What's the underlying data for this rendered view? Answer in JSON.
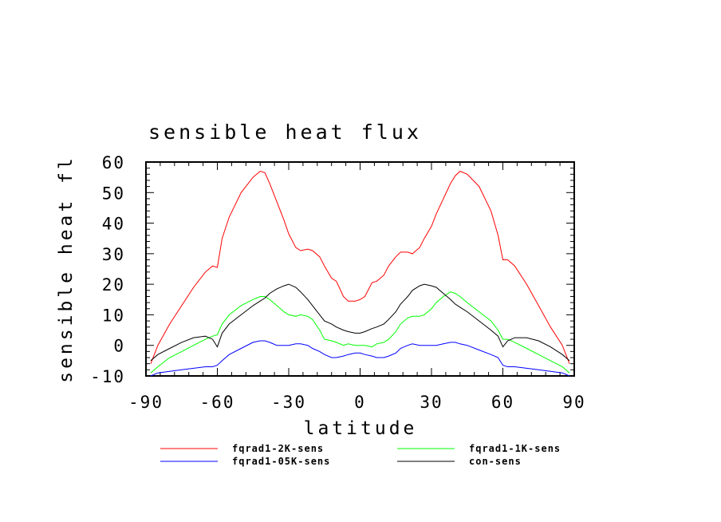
{
  "chart_data": {
    "type": "line",
    "title": "sensible heat flux",
    "xlabel": "latitude",
    "ylabel": "sensible heat fl",
    "xlim": [
      -90,
      90
    ],
    "ylim": [
      -10,
      60
    ],
    "xticks": [
      -90,
      -60,
      -30,
      0,
      30,
      60,
      90
    ],
    "yticks": [
      -10,
      0,
      10,
      20,
      30,
      40,
      50,
      60
    ],
    "x": [
      -88,
      -85,
      -80,
      -75,
      -70,
      -65,
      -62,
      -60,
      -58,
      -55,
      -50,
      -45,
      -42,
      -40,
      -38,
      -35,
      -32,
      -30,
      -27,
      -25,
      -22,
      -20,
      -17,
      -15,
      -12,
      -10,
      -7,
      -5,
      -2,
      0,
      2,
      5,
      7,
      10,
      12,
      15,
      17,
      20,
      22,
      25,
      27,
      30,
      32,
      35,
      38,
      40,
      42,
      45,
      50,
      55,
      58,
      60,
      62,
      65,
      70,
      75,
      80,
      85,
      88
    ],
    "series": [
      {
        "name": "fqrad1-2K-sens",
        "color": "#ff0000",
        "values": [
          -6,
          0,
          7,
          13,
          19,
          24,
          26,
          25.5,
          35,
          42,
          50,
          55,
          57,
          56.5,
          53,
          47,
          41,
          36.5,
          32,
          31,
          31.5,
          31,
          29,
          26,
          22,
          21,
          16,
          14.5,
          14.5,
          15,
          16,
          20.5,
          21,
          23,
          26,
          29,
          30.5,
          30.5,
          30,
          32,
          35,
          39,
          43,
          48,
          53,
          55.5,
          57,
          56,
          52,
          44,
          36,
          28,
          28,
          26,
          20,
          13,
          6,
          0,
          -6
        ]
      },
      {
        "name": "fqrad1-1K-sens",
        "color": "#00ff00",
        "values": [
          -9,
          -7,
          -4,
          -2,
          0,
          2,
          3,
          3.5,
          7,
          10,
          13,
          15,
          16,
          16,
          15,
          13,
          11,
          10,
          9.5,
          10,
          9.5,
          8.5,
          5,
          2,
          1.5,
          1,
          0,
          0.5,
          0,
          0,
          0,
          -0.5,
          0.5,
          1,
          2,
          4.5,
          7,
          9,
          9.5,
          9.5,
          10,
          12,
          14,
          16,
          17.5,
          17,
          16,
          14,
          11,
          8,
          5,
          2,
          2,
          1,
          -1,
          -3,
          -5,
          -7,
          -9
        ]
      },
      {
        "name": "fqrad1-05K-sens",
        "color": "#0000ff",
        "values": [
          -10,
          -9,
          -8.5,
          -8,
          -7.5,
          -7,
          -7,
          -6.5,
          -5,
          -3,
          -1,
          1,
          1.5,
          1.5,
          1,
          0,
          0,
          0,
          0.5,
          0.5,
          0,
          -1,
          -2,
          -3,
          -4,
          -4,
          -3.5,
          -3,
          -2.5,
          -2.5,
          -3,
          -3.5,
          -4,
          -4,
          -3.5,
          -2.5,
          -1,
          0,
          0.5,
          0,
          0,
          0,
          0,
          0.5,
          1,
          1,
          0.5,
          0,
          -1.5,
          -3,
          -4,
          -6.5,
          -7,
          -7,
          -7.5,
          -8,
          -8.5,
          -9,
          -10
        ]
      },
      {
        "name": "con-sens",
        "color": "#000000",
        "values": [
          -5,
          -3,
          -1,
          1,
          2.5,
          3,
          2,
          -0.5,
          4,
          7,
          10,
          13,
          14.5,
          15.5,
          17,
          18.5,
          19.5,
          20,
          19,
          17.5,
          15,
          13,
          10,
          8,
          7,
          6,
          5,
          4.5,
          4,
          4,
          4.5,
          5.5,
          6,
          7,
          8.5,
          11,
          13.5,
          16,
          18,
          19.5,
          20,
          19.5,
          19,
          17,
          15,
          13.5,
          12.5,
          11,
          8,
          5,
          3,
          -0.5,
          1.5,
          2.5,
          2.5,
          1.5,
          -0.5,
          -3,
          -5
        ]
      }
    ],
    "legend": {
      "placement": "bottom",
      "columns": 2,
      "order": [
        "fqrad1-2K-sens",
        "fqrad1-1K-sens",
        "fqrad1-05K-sens",
        "con-sens"
      ]
    },
    "grid": false
  }
}
